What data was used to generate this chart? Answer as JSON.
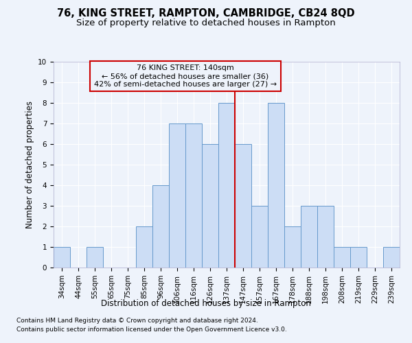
{
  "title": "76, KING STREET, RAMPTON, CAMBRIDGE, CB24 8QD",
  "subtitle": "Size of property relative to detached houses in Rampton",
  "xlabel": "Distribution of detached houses by size in Rampton",
  "ylabel": "Number of detached properties",
  "categories": [
    "34sqm",
    "44sqm",
    "55sqm",
    "65sqm",
    "75sqm",
    "85sqm",
    "96sqm",
    "106sqm",
    "116sqm",
    "126sqm",
    "137sqm",
    "147sqm",
    "157sqm",
    "167sqm",
    "178sqm",
    "188sqm",
    "198sqm",
    "208sqm",
    "219sqm",
    "229sqm",
    "239sqm"
  ],
  "values": [
    1,
    0,
    1,
    0,
    0,
    2,
    4,
    7,
    7,
    6,
    8,
    6,
    3,
    8,
    2,
    3,
    3,
    1,
    1,
    0,
    1
  ],
  "bar_color": "#ccddf5",
  "bar_edge_color": "#6699cc",
  "highlight_line_index": 10.5,
  "highlight_line_color": "#cc0000",
  "ylim": [
    0,
    10
  ],
  "yticks": [
    0,
    1,
    2,
    3,
    4,
    5,
    6,
    7,
    8,
    9,
    10
  ],
  "annotation_line1": "76 KING STREET: 140sqm",
  "annotation_line2": "← 56% of detached houses are smaller (36)",
  "annotation_line3": "42% of semi-detached houses are larger (27) →",
  "annotation_box_color": "#cc0000",
  "annotation_bg": "#eef3fb",
  "footnote1": "Contains HM Land Registry data © Crown copyright and database right 2024.",
  "footnote2": "Contains public sector information licensed under the Open Government Licence v3.0.",
  "background_color": "#eef3fb",
  "grid_color": "#ffffff",
  "title_fontsize": 10.5,
  "subtitle_fontsize": 9.5,
  "xlabel_fontsize": 8.5,
  "ylabel_fontsize": 8.5,
  "tick_fontsize": 7.5,
  "annotation_fontsize": 8,
  "footnote_fontsize": 6.5
}
